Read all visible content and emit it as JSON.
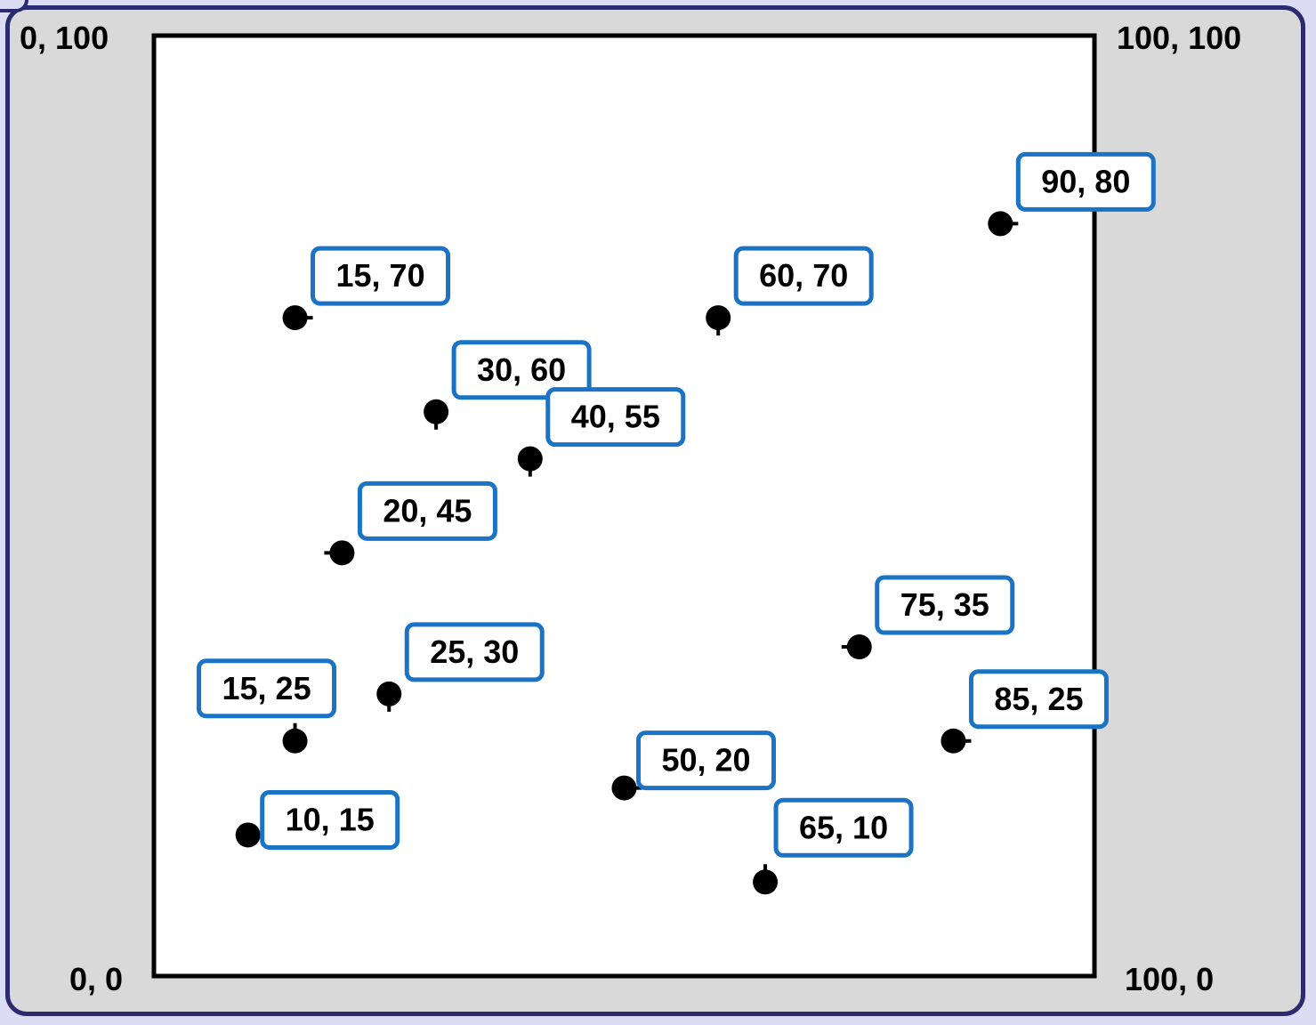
{
  "corner_labels": {
    "top_left": "0, 100",
    "top_right": "100, 100",
    "bottom_left": "0, 0",
    "bottom_right": "100, 0"
  },
  "colors": {
    "frame": "#2b2b6e",
    "panel": "#d9d9d9",
    "plot_area": "#ffffff",
    "label_border": "#1a73c4",
    "point": "#000000"
  },
  "chart_data": {
    "type": "scatter",
    "xlim": [
      0,
      100
    ],
    "ylim": [
      0,
      100
    ],
    "grid": false,
    "points": [
      {
        "x": 90,
        "y": 80,
        "label": "90, 80",
        "stub": "right"
      },
      {
        "x": 15,
        "y": 70,
        "label": "15, 70",
        "stub": "right"
      },
      {
        "x": 60,
        "y": 70,
        "label": "60, 70",
        "stub": "down"
      },
      {
        "x": 30,
        "y": 60,
        "label": "30, 60",
        "stub": "down"
      },
      {
        "x": 40,
        "y": 55,
        "label": "40, 55",
        "stub": "down"
      },
      {
        "x": 20,
        "y": 45,
        "label": "20, 45",
        "stub": "left"
      },
      {
        "x": 75,
        "y": 35,
        "label": "75, 35",
        "stub": "left"
      },
      {
        "x": 25,
        "y": 30,
        "label": "25, 30",
        "stub": "down"
      },
      {
        "x": 15,
        "y": 25,
        "label": "15, 25",
        "stub": "up"
      },
      {
        "x": 85,
        "y": 25,
        "label": "85, 25",
        "stub": "right"
      },
      {
        "x": 50,
        "y": 20,
        "label": "50, 20",
        "stub": "right"
      },
      {
        "x": 10,
        "y": 15,
        "label": "10, 15",
        "stub": "right"
      },
      {
        "x": 65,
        "y": 10,
        "label": "65, 10",
        "stub": "up"
      }
    ]
  }
}
